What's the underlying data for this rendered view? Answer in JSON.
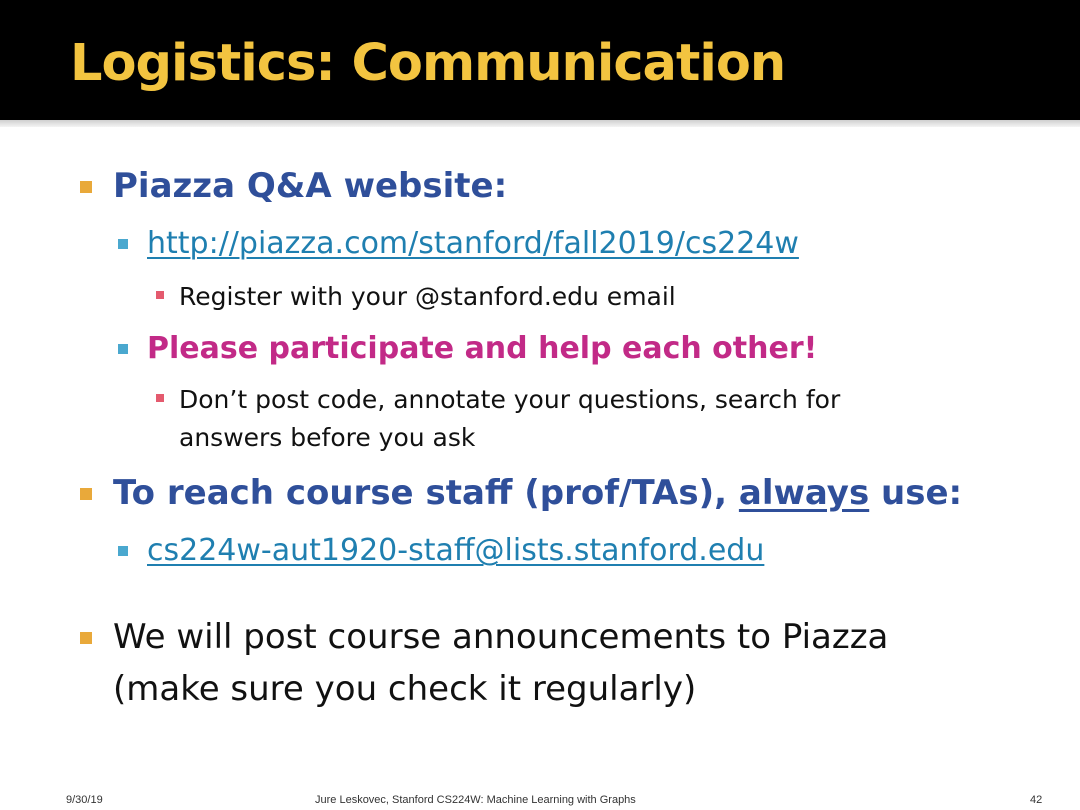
{
  "slide": {
    "title": "Logistics: Communication",
    "bullets": {
      "piazza_heading": "Piazza Q&A website:",
      "piazza_url": "http://piazza.com/stanford/fall2019/cs224w",
      "register_note": "Register with your @stanford.edu email",
      "participate": "Please participate and help each other!",
      "dont_post_line1": "Don’t post code, annotate your questions, search for",
      "dont_post_line2": "answers before you ask",
      "staff_part1": "To reach course staff (prof/TAs), ",
      "staff_always": "always",
      "staff_part2": " use:",
      "staff_email": "cs224w-aut1920-staff@lists.stanford.edu",
      "announce_line1": "We will post course announcements to Piazza",
      "announce_line2": "(make sure you check it regularly)"
    },
    "footer": {
      "date": "9/30/19",
      "center": "Jure Leskovec, Stanford CS224W: Machine Learning with Graphs",
      "page": "42"
    }
  },
  "colors": {
    "title": "#f3c440",
    "heading_blue": "#2f4f9a",
    "link": "#1f7fb0",
    "magenta": "#c22a87",
    "bullet_level1": "#e9a93a",
    "bullet_level2": "#4aa8cf",
    "bullet_level3": "#e45a6e"
  }
}
